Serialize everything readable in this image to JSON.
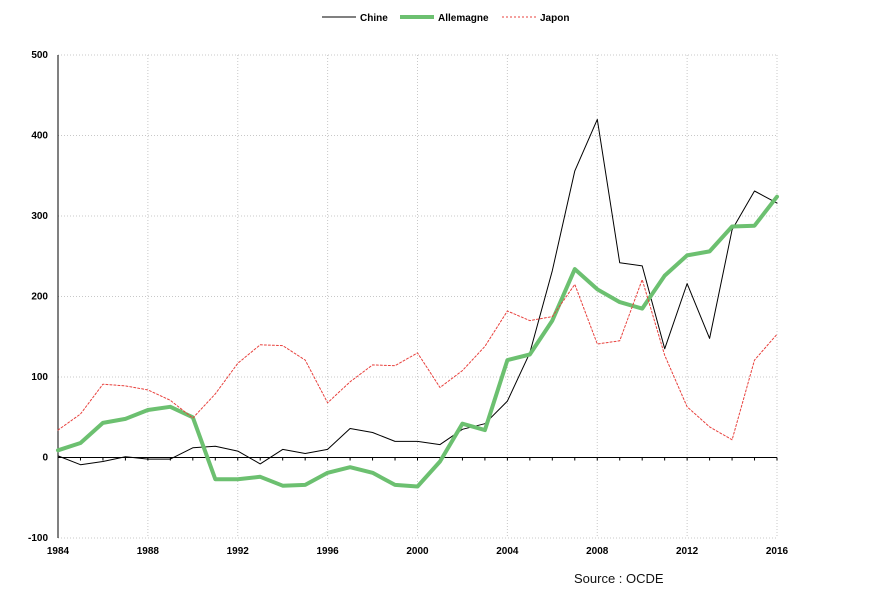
{
  "chart_data": {
    "type": "line",
    "title": "",
    "xlabel": "",
    "ylabel": "",
    "xlim": [
      1984,
      2016
    ],
    "ylim": [
      -100,
      500
    ],
    "x_ticks": [
      1984,
      1988,
      1992,
      1996,
      2000,
      2004,
      2008,
      2012,
      2016
    ],
    "y_ticks": [
      -100,
      0,
      100,
      200,
      300,
      400,
      500
    ],
    "grid": "dotted vertical and horizontal",
    "legend_position": "top-center",
    "x": [
      1984,
      1985,
      1986,
      1987,
      1988,
      1989,
      1990,
      1991,
      1992,
      1993,
      1994,
      1995,
      1996,
      1997,
      1998,
      1999,
      2000,
      2001,
      2002,
      2003,
      2004,
      2005,
      2006,
      2007,
      2008,
      2009,
      2010,
      2011,
      2012,
      2013,
      2014,
      2015,
      2016
    ],
    "series": [
      {
        "name": "Chine",
        "color": "#000000",
        "style": "solid-thin",
        "values": [
          2,
          -9,
          -5,
          1,
          -2,
          -2,
          12,
          14,
          8,
          -8,
          10,
          5,
          10,
          36,
          31,
          20,
          20,
          16,
          35,
          42,
          70,
          130,
          232,
          356,
          420,
          242,
          238,
          135,
          216,
          148,
          283,
          331,
          316
        ]
      },
      {
        "name": "Allemagne",
        "color": "#6cc070",
        "style": "solid-thick",
        "values": [
          9,
          18,
          43,
          48,
          59,
          63,
          50,
          -27,
          -27,
          -24,
          -35,
          -34,
          -19,
          -12,
          -19,
          -34,
          -36,
          -5,
          42,
          34,
          121,
          128,
          170,
          234,
          209,
          193,
          185,
          226,
          251,
          256,
          287,
          288,
          324
        ]
      },
      {
        "name": "Japon",
        "color": "#e8413d",
        "style": "dotted",
        "values": [
          34,
          54,
          91,
          89,
          84,
          71,
          49,
          79,
          117,
          140,
          139,
          121,
          68,
          94,
          115,
          114,
          130,
          87,
          108,
          138,
          182,
          170,
          175,
          215,
          141,
          145,
          221,
          127,
          63,
          38,
          22,
          121,
          153
        ]
      }
    ]
  },
  "source_note": "Source : OCDE"
}
